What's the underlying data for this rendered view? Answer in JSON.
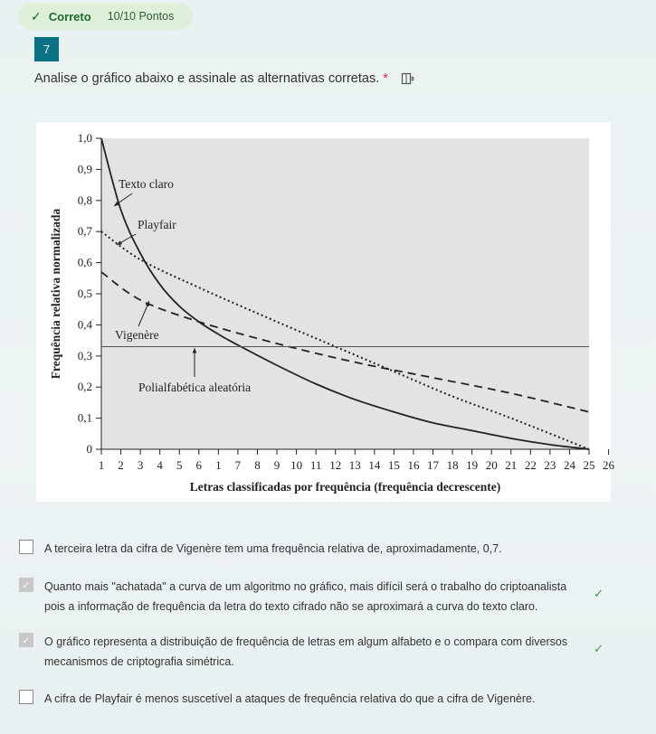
{
  "result": {
    "status": "Correto",
    "points": "10/10 Pontos"
  },
  "question": {
    "number": "7",
    "text": "Analise o gráfico abaixo e assinale as alternativas corretas.",
    "required_mark": "*",
    "reader_icon": "immersive-reader-icon"
  },
  "chart_data": {
    "type": "line",
    "ylabel": "Frequência relativa normalizada",
    "xlabel": "Letras classificadas por frequência (frequência decrescente)",
    "yticks": [
      "0",
      "0,1",
      "0,2",
      "0,3",
      "0,4",
      "0,5",
      "0,6",
      "0,7",
      "0,8",
      "0,9",
      "1,0"
    ],
    "xticks": [
      "1",
      "2",
      "3",
      "4",
      "5",
      "6",
      "1",
      "7",
      "8",
      "9",
      "10",
      "11",
      "12",
      "13",
      "14",
      "15",
      "16",
      "17",
      "18",
      "19",
      "20",
      "21",
      "22",
      "23",
      "24",
      "25",
      "26"
    ],
    "ylim": [
      0,
      1.0
    ],
    "xlim": [
      1,
      26
    ],
    "grid": false,
    "background": "#e3e3e3",
    "series": [
      {
        "name": "Texto claro",
        "style": "solid",
        "x": [
          1,
          2,
          3,
          4,
          5,
          6,
          7,
          8,
          10,
          12,
          14,
          16,
          18,
          20,
          22,
          24,
          26
        ],
        "y": [
          1.0,
          0.77,
          0.63,
          0.53,
          0.46,
          0.41,
          0.37,
          0.335,
          0.27,
          0.21,
          0.16,
          0.12,
          0.085,
          0.06,
          0.035,
          0.015,
          0.0
        ]
      },
      {
        "name": "Playfair",
        "style": "dotted",
        "x": [
          1,
          3,
          6,
          10,
          13,
          16,
          19,
          22,
          26
        ],
        "y": [
          0.7,
          0.61,
          0.52,
          0.41,
          0.33,
          0.25,
          0.17,
          0.1,
          0.0
        ]
      },
      {
        "name": "Vigenère",
        "style": "dashed",
        "x": [
          1,
          3,
          6,
          10,
          14,
          18,
          22,
          26
        ],
        "y": [
          0.57,
          0.48,
          0.41,
          0.34,
          0.28,
          0.23,
          0.18,
          0.12
        ]
      },
      {
        "name": "Polialfabética aleatória",
        "style": "solid",
        "x": [
          1,
          26
        ],
        "y": [
          0.33,
          0.33
        ]
      }
    ],
    "annotations": [
      "Texto claro",
      "Playfair",
      "Vigenère",
      "Polialfabética aleatória"
    ]
  },
  "options": [
    {
      "text": "A terceira letra da cifra de Vigenère tem uma frequência relativa de, aproximadamente, 0,7.",
      "checked": false,
      "correct_mark": ""
    },
    {
      "text": "Quanto mais \"achatada\" a curva de um algoritmo no gráfico, mais difícil será o trabalho do criptoanalista pois a informação de frequência da letra do texto cifrado não se aproximará a curva do texto claro.",
      "checked": true,
      "correct_mark": "✓"
    },
    {
      "text": "O gráfico representa a distribuição de frequência de letras em algum alfabeto e o compara com diversos mecanismos de criptografia simétrica.",
      "checked": true,
      "correct_mark": "✓"
    },
    {
      "text": "A cifra de Playfair é menos suscetível a ataques de frequência relativa do que a cifra de Vigenère.",
      "checked": false,
      "correct_mark": ""
    }
  ],
  "colors": {
    "accent": "#0b7285",
    "success_bg": "#dff0da",
    "success_text": "#1b6a2a",
    "check": "#3a9d45",
    "required": "#c4314b"
  }
}
